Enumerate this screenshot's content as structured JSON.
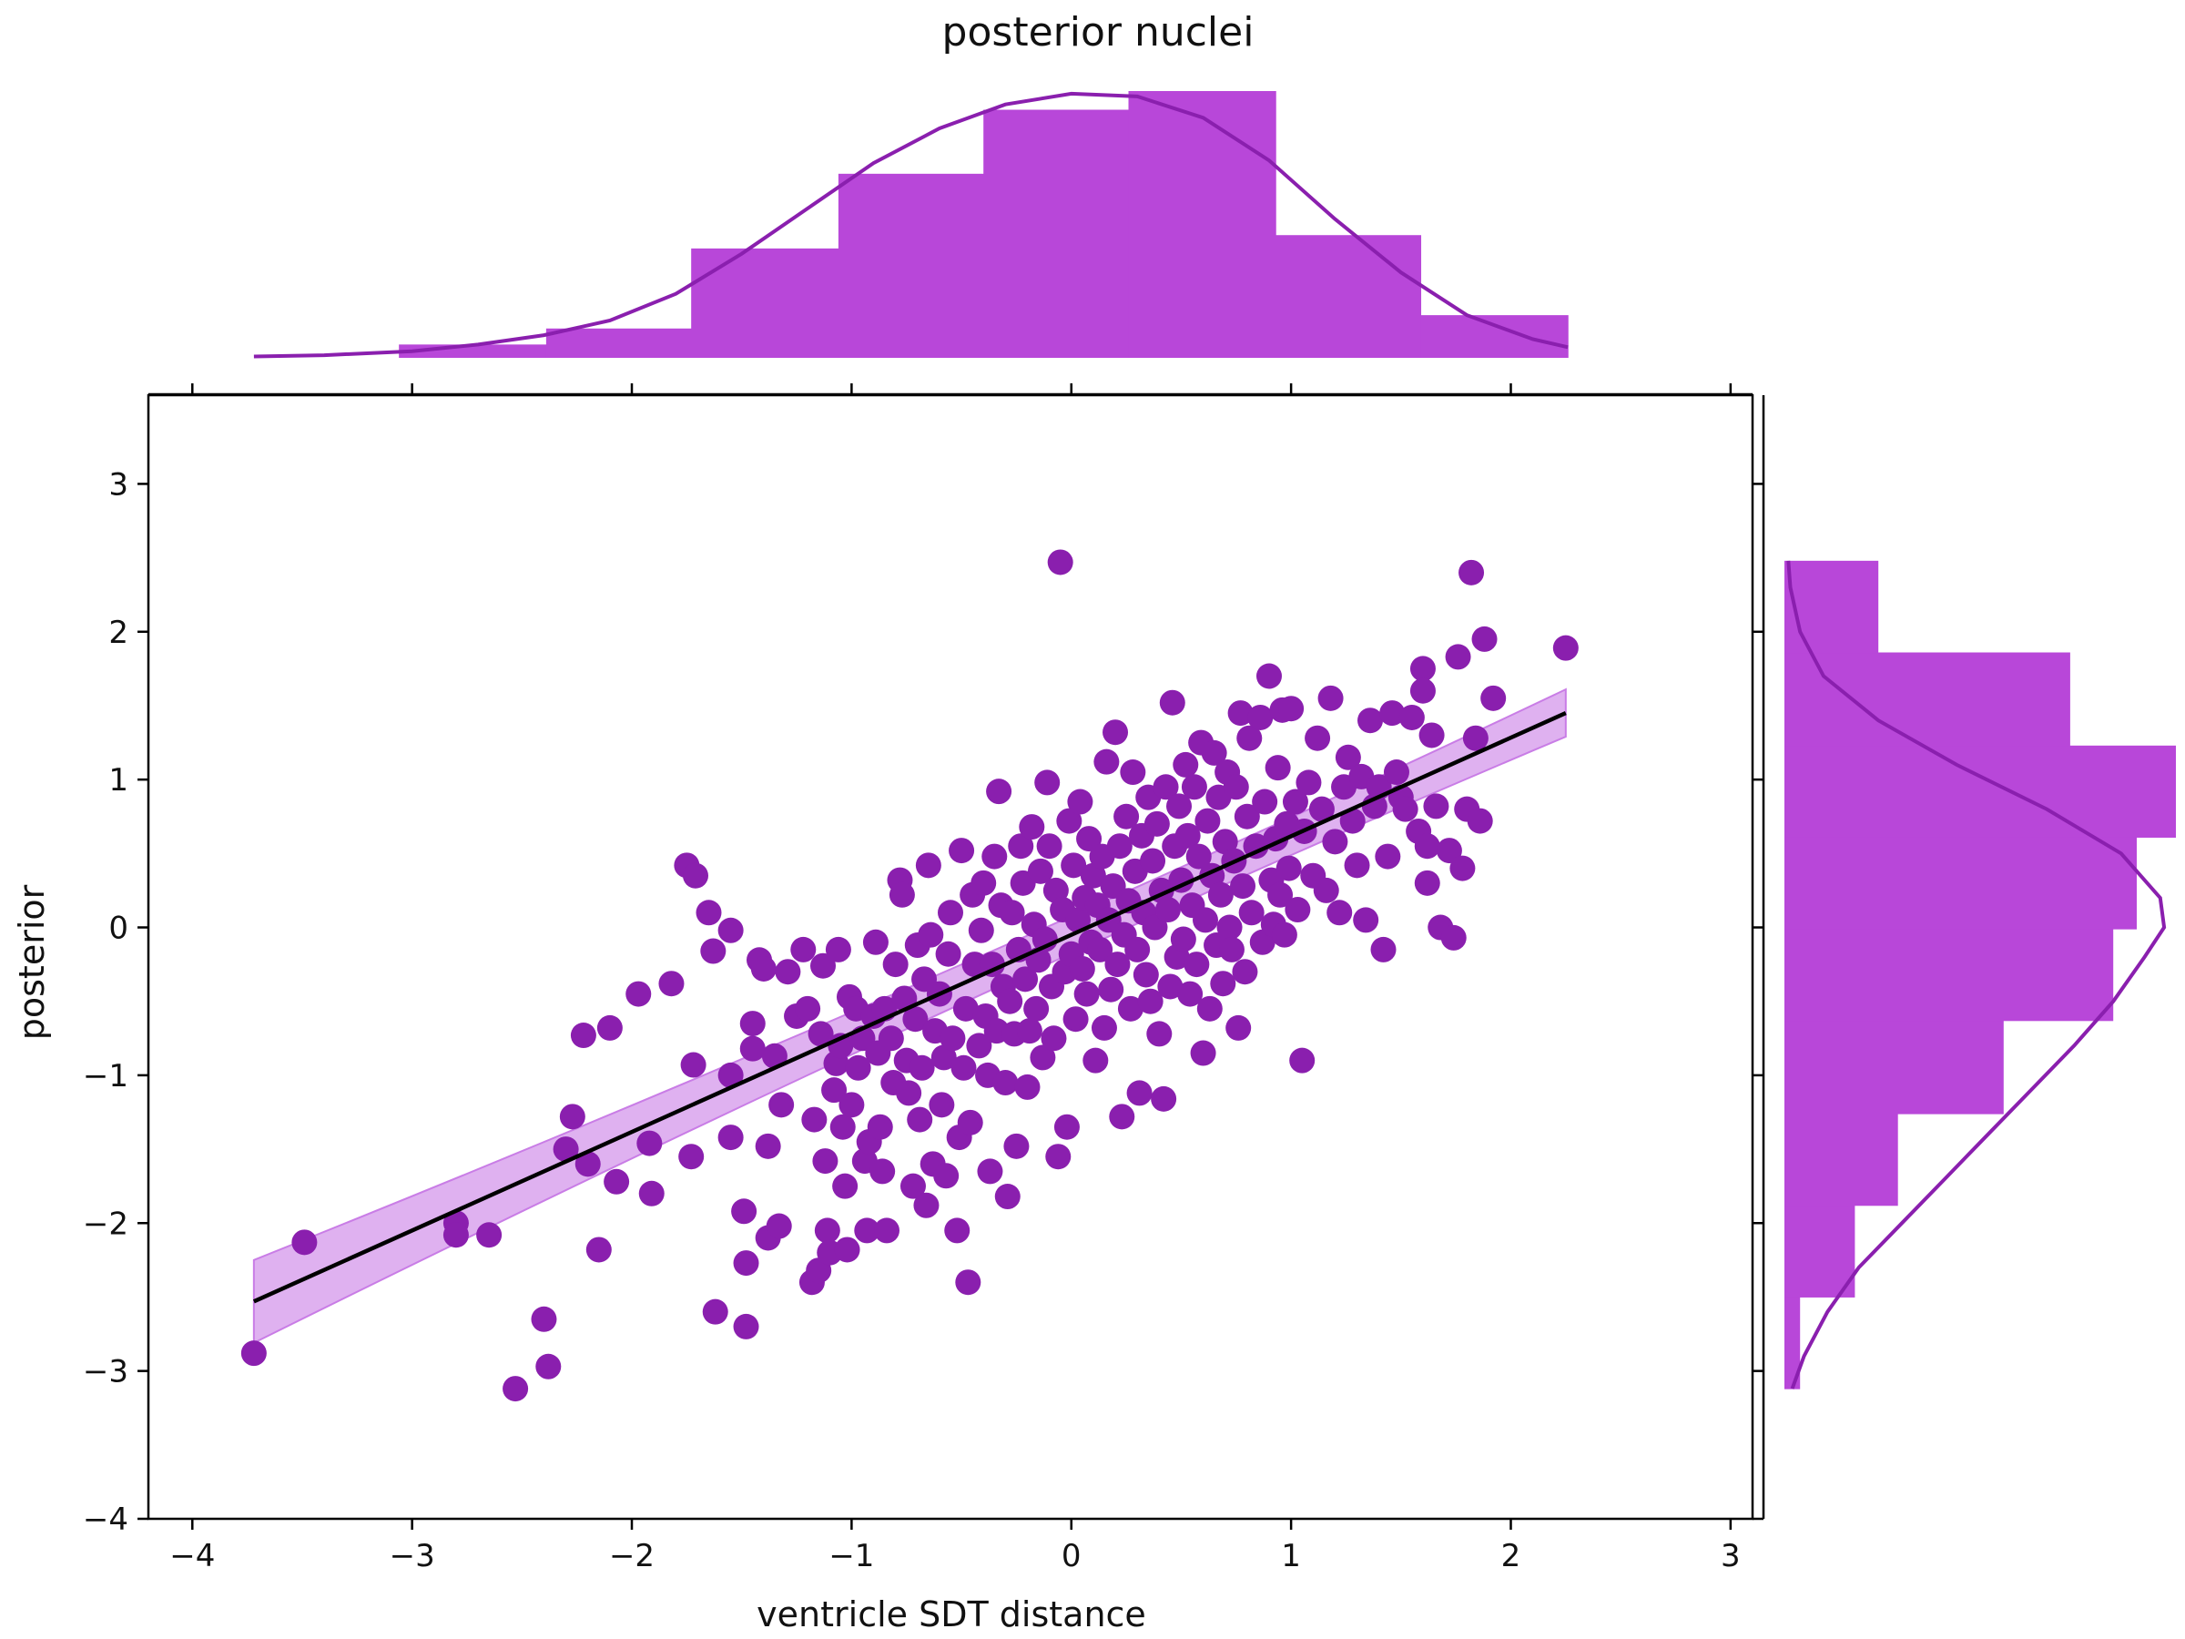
{
  "chart_data": {
    "type": "scatter",
    "title": "posterior nuclei",
    "xlabel": "ventricle SDT distance",
    "ylabel": "posterior",
    "xlim": [
      -4.2,
      3.1
    ],
    "ylim": [
      -4,
      3.6
    ],
    "xticks": [
      -4,
      -3,
      -2,
      -1,
      0,
      1,
      2,
      3
    ],
    "yticks": [
      -4,
      -3,
      -2,
      -1,
      0,
      1,
      2,
      3
    ],
    "grid": false,
    "colors": {
      "points": "#8a1fae",
      "hist": "#b847d9",
      "kde": "#8a1fae",
      "regression": "#000000",
      "ci_band": "#c97de6"
    },
    "regression": {
      "x": [
        -3.72,
        2.25
      ],
      "y": [
        -2.53,
        1.45
      ],
      "ci_low_y": [
        -2.81,
        1.29
      ],
      "ci_high_y": [
        -2.25,
        1.61
      ]
    },
    "points": [
      [
        -3.72,
        -2.88
      ],
      [
        -3.49,
        -2.13
      ],
      [
        -2.8,
        -2.0
      ],
      [
        -2.8,
        -2.08
      ],
      [
        -2.65,
        -2.08
      ],
      [
        -2.53,
        -3.12
      ],
      [
        -2.38,
        -2.97
      ],
      [
        -2.4,
        -2.65
      ],
      [
        -2.15,
        -2.18
      ],
      [
        -2.3,
        -1.5
      ],
      [
        -2.27,
        -1.28
      ],
      [
        -2.2,
        -1.6
      ],
      [
        -2.22,
        -0.73
      ],
      [
        -2.1,
        -0.68
      ],
      [
        -2.07,
        -1.72
      ],
      [
        -1.97,
        -0.45
      ],
      [
        -1.92,
        -1.46
      ],
      [
        -1.91,
        -1.8
      ],
      [
        -1.82,
        -0.38
      ],
      [
        -1.75,
        0.42
      ],
      [
        -1.71,
        0.35
      ],
      [
        -1.72,
        -0.93
      ],
      [
        -1.73,
        -1.55
      ],
      [
        -1.65,
        0.1
      ],
      [
        -1.63,
        -0.16
      ],
      [
        -1.62,
        -2.6
      ],
      [
        -1.55,
        -0.02
      ],
      [
        -1.55,
        -1.0
      ],
      [
        -1.55,
        -1.42
      ],
      [
        -1.49,
        -1.92
      ],
      [
        -1.48,
        -2.27
      ],
      [
        -1.48,
        -2.7
      ],
      [
        -1.45,
        -0.82
      ],
      [
        -1.45,
        -0.65
      ],
      [
        -1.42,
        -0.22
      ],
      [
        -1.4,
        -0.28
      ],
      [
        -1.38,
        -1.48
      ],
      [
        -1.38,
        -2.1
      ],
      [
        -1.35,
        -0.87
      ],
      [
        -1.33,
        -2.02
      ],
      [
        -1.32,
        -1.2
      ],
      [
        -1.29,
        -0.3
      ],
      [
        -1.25,
        -0.6
      ],
      [
        -1.22,
        -0.15
      ],
      [
        -1.2,
        -0.55
      ],
      [
        -1.18,
        -2.4
      ],
      [
        -1.17,
        -1.3
      ],
      [
        -1.15,
        -2.32
      ],
      [
        -1.14,
        -0.72
      ],
      [
        -1.13,
        -0.26
      ],
      [
        -1.12,
        -1.58
      ],
      [
        -1.11,
        -2.05
      ],
      [
        -1.1,
        -2.2
      ],
      [
        -1.08,
        -1.1
      ],
      [
        -1.07,
        -0.92
      ],
      [
        -1.06,
        -0.15
      ],
      [
        -1.05,
        -0.8
      ],
      [
        -1.04,
        -1.35
      ],
      [
        -1.03,
        -1.75
      ],
      [
        -1.02,
        -2.18
      ],
      [
        -1.01,
        -0.47
      ],
      [
        -1.0,
        -1.2
      ],
      [
        -0.98,
        -0.55
      ],
      [
        -0.97,
        -0.95
      ],
      [
        -0.95,
        -0.75
      ],
      [
        -0.94,
        -1.58
      ],
      [
        -0.93,
        -2.05
      ],
      [
        -0.92,
        -1.45
      ],
      [
        -0.9,
        -0.6
      ],
      [
        -0.89,
        -0.1
      ],
      [
        -0.88,
        -0.85
      ],
      [
        -0.87,
        -1.35
      ],
      [
        -0.86,
        -1.65
      ],
      [
        -0.85,
        -0.55
      ],
      [
        -0.84,
        -2.05
      ],
      [
        -0.82,
        -0.75
      ],
      [
        -0.81,
        -1.05
      ],
      [
        -0.8,
        -0.25
      ],
      [
        -0.78,
        0.32
      ],
      [
        -0.77,
        0.22
      ],
      [
        -0.76,
        -0.48
      ],
      [
        -0.75,
        -0.9
      ],
      [
        -0.74,
        -1.12
      ],
      [
        -0.72,
        -1.75
      ],
      [
        -0.71,
        -0.62
      ],
      [
        -0.7,
        -0.12
      ],
      [
        -0.69,
        -1.3
      ],
      [
        -0.68,
        -0.95
      ],
      [
        -0.67,
        -0.35
      ],
      [
        -0.66,
        -1.88
      ],
      [
        -0.65,
        0.42
      ],
      [
        -0.64,
        -0.05
      ],
      [
        -0.63,
        -1.6
      ],
      [
        -0.62,
        -0.7
      ],
      [
        -0.6,
        -0.45
      ],
      [
        -0.59,
        -1.2
      ],
      [
        -0.58,
        -0.88
      ],
      [
        -0.57,
        -1.68
      ],
      [
        -0.56,
        -0.18
      ],
      [
        -0.55,
        0.1
      ],
      [
        -0.54,
        -0.75
      ],
      [
        -0.52,
        -2.05
      ],
      [
        -0.51,
        -1.42
      ],
      [
        -0.5,
        0.52
      ],
      [
        -0.49,
        -0.95
      ],
      [
        -0.48,
        -0.55
      ],
      [
        -0.47,
        -2.4
      ],
      [
        -0.46,
        -1.32
      ],
      [
        -0.45,
        0.22
      ],
      [
        -0.44,
        -0.25
      ],
      [
        -0.42,
        -0.8
      ],
      [
        -0.41,
        -0.02
      ],
      [
        -0.4,
        0.3
      ],
      [
        -0.39,
        -0.6
      ],
      [
        -0.38,
        -1.0
      ],
      [
        -0.37,
        -1.65
      ],
      [
        -0.36,
        -0.25
      ],
      [
        -0.35,
        0.48
      ],
      [
        -0.34,
        -0.7
      ],
      [
        -0.33,
        0.92
      ],
      [
        -0.32,
        0.15
      ],
      [
        -0.31,
        -0.4
      ],
      [
        -0.3,
        -1.05
      ],
      [
        -0.29,
        -1.82
      ],
      [
        -0.28,
        -0.5
      ],
      [
        -0.27,
        0.1
      ],
      [
        -0.26,
        -0.72
      ],
      [
        -0.25,
        -1.48
      ],
      [
        -0.24,
        -0.15
      ],
      [
        -0.23,
        0.55
      ],
      [
        -0.22,
        0.3
      ],
      [
        -0.21,
        -0.35
      ],
      [
        -0.2,
        -1.08
      ],
      [
        -0.19,
        -0.7
      ],
      [
        -0.18,
        0.68
      ],
      [
        -0.17,
        0.02
      ],
      [
        -0.16,
        -0.55
      ],
      [
        -0.15,
        -0.22
      ],
      [
        -0.14,
        0.38
      ],
      [
        -0.13,
        -0.88
      ],
      [
        -0.12,
        -0.08
      ],
      [
        -0.11,
        0.98
      ],
      [
        -0.1,
        0.55
      ],
      [
        -0.09,
        -0.4
      ],
      [
        -0.08,
        -0.75
      ],
      [
        -0.07,
        0.25
      ],
      [
        -0.06,
        -1.55
      ],
      [
        -0.05,
        2.47
      ],
      [
        -0.04,
        0.12
      ],
      [
        -0.03,
        -0.3
      ],
      [
        -0.02,
        -1.35
      ],
      [
        -0.01,
        0.72
      ],
      [
        0.0,
        -0.18
      ],
      [
        0.01,
        0.42
      ],
      [
        0.02,
        -0.62
      ],
      [
        0.03,
        0.05
      ],
      [
        0.04,
        0.85
      ],
      [
        0.05,
        -0.28
      ],
      [
        0.06,
        0.2
      ],
      [
        0.07,
        -0.45
      ],
      [
        0.08,
        0.6
      ],
      [
        0.09,
        -0.1
      ],
      [
        0.1,
        0.35
      ],
      [
        0.11,
        -0.9
      ],
      [
        0.12,
        0.15
      ],
      [
        0.13,
        -0.15
      ],
      [
        0.14,
        0.48
      ],
      [
        0.15,
        -0.68
      ],
      [
        0.16,
        1.12
      ],
      [
        0.17,
        0.05
      ],
      [
        0.18,
        -0.42
      ],
      [
        0.19,
        0.28
      ],
      [
        0.2,
        1.32
      ],
      [
        0.21,
        -0.25
      ],
      [
        0.22,
        0.55
      ],
      [
        0.23,
        -1.28
      ],
      [
        0.24,
        -0.05
      ],
      [
        0.25,
        0.75
      ],
      [
        0.26,
        0.18
      ],
      [
        0.27,
        -0.55
      ],
      [
        0.28,
        1.05
      ],
      [
        0.29,
        0.38
      ],
      [
        0.3,
        -0.15
      ],
      [
        0.31,
        -1.12
      ],
      [
        0.32,
        0.62
      ],
      [
        0.33,
        0.1
      ],
      [
        0.34,
        -0.32
      ],
      [
        0.35,
        0.88
      ],
      [
        0.36,
        -0.5
      ],
      [
        0.37,
        0.45
      ],
      [
        0.38,
        0.0
      ],
      [
        0.39,
        0.7
      ],
      [
        0.4,
        -0.72
      ],
      [
        0.41,
        0.25
      ],
      [
        0.42,
        -1.16
      ],
      [
        0.43,
        0.95
      ],
      [
        0.44,
        0.12
      ],
      [
        0.45,
        -0.4
      ],
      [
        0.46,
        1.52
      ],
      [
        0.47,
        0.55
      ],
      [
        0.48,
        -0.2
      ],
      [
        0.49,
        0.82
      ],
      [
        0.5,
        0.32
      ],
      [
        0.51,
        -0.08
      ],
      [
        0.52,
        1.1
      ],
      [
        0.53,
        0.62
      ],
      [
        0.54,
        -0.45
      ],
      [
        0.55,
        0.15
      ],
      [
        0.56,
        0.95
      ],
      [
        0.57,
        -0.25
      ],
      [
        0.58,
        0.48
      ],
      [
        0.59,
        1.25
      ],
      [
        0.6,
        -0.85
      ],
      [
        0.61,
        0.05
      ],
      [
        0.62,
        0.72
      ],
      [
        0.63,
        -0.55
      ],
      [
        0.64,
        0.35
      ],
      [
        0.65,
        1.18
      ],
      [
        0.66,
        -0.12
      ],
      [
        0.67,
        0.88
      ],
      [
        0.68,
        0.22
      ],
      [
        0.69,
        -0.38
      ],
      [
        0.7,
        0.58
      ],
      [
        0.71,
        1.05
      ],
      [
        0.72,
        0.0
      ],
      [
        0.73,
        -0.15
      ],
      [
        0.74,
        0.45
      ],
      [
        0.75,
        0.95
      ],
      [
        0.76,
        -0.68
      ],
      [
        0.77,
        1.45
      ],
      [
        0.78,
        0.28
      ],
      [
        0.79,
        -0.3
      ],
      [
        0.8,
        0.75
      ],
      [
        0.81,
        1.28
      ],
      [
        0.82,
        0.1
      ],
      [
        0.84,
        0.55
      ],
      [
        0.86,
        1.42
      ],
      [
        0.87,
        -0.1
      ],
      [
        0.88,
        0.85
      ],
      [
        0.9,
        1.7
      ],
      [
        0.91,
        0.32
      ],
      [
        0.92,
        0.02
      ],
      [
        0.93,
        0.6
      ],
      [
        0.94,
        1.08
      ],
      [
        0.95,
        0.22
      ],
      [
        0.96,
        1.47
      ],
      [
        0.97,
        -0.05
      ],
      [
        0.98,
        0.7
      ],
      [
        0.99,
        0.4
      ],
      [
        1.0,
        1.48
      ],
      [
        1.02,
        0.85
      ],
      [
        1.03,
        0.12
      ],
      [
        1.05,
        -0.9
      ],
      [
        1.06,
        0.65
      ],
      [
        1.08,
        0.98
      ],
      [
        1.1,
        0.35
      ],
      [
        1.12,
        1.28
      ],
      [
        1.14,
        0.8
      ],
      [
        1.16,
        0.25
      ],
      [
        1.18,
        1.55
      ],
      [
        1.2,
        0.58
      ],
      [
        1.22,
        0.1
      ],
      [
        1.24,
        0.95
      ],
      [
        1.26,
        1.15
      ],
      [
        1.28,
        0.72
      ],
      [
        1.3,
        0.42
      ],
      [
        1.32,
        1.02
      ],
      [
        1.34,
        0.05
      ],
      [
        1.36,
        1.4
      ],
      [
        1.38,
        0.82
      ],
      [
        1.4,
        0.95
      ],
      [
        1.42,
        -0.15
      ],
      [
        1.44,
        0.48
      ],
      [
        1.46,
        1.45
      ],
      [
        1.48,
        1.05
      ],
      [
        1.5,
        0.88
      ],
      [
        1.52,
        0.8
      ],
      [
        1.55,
        1.42
      ],
      [
        1.58,
        0.65
      ],
      [
        1.6,
        1.75
      ],
      [
        1.6,
        1.6
      ],
      [
        1.62,
        0.55
      ],
      [
        1.62,
        0.3
      ],
      [
        1.64,
        1.3
      ],
      [
        1.66,
        0.82
      ],
      [
        1.68,
        0.0
      ],
      [
        1.72,
        0.52
      ],
      [
        1.74,
        -0.07
      ],
      [
        1.76,
        1.83
      ],
      [
        1.78,
        0.4
      ],
      [
        1.8,
        0.8
      ],
      [
        1.82,
        2.4
      ],
      [
        1.84,
        1.28
      ],
      [
        1.86,
        0.72
      ],
      [
        1.88,
        1.95
      ],
      [
        1.92,
        1.55
      ],
      [
        2.25,
        1.89
      ]
    ],
    "top_marginal": {
      "bin_edges": [
        -3.72,
        -3.06,
        -2.39,
        -1.73,
        -1.06,
        -0.4,
        0.26,
        0.93,
        1.59,
        2.26
      ],
      "counts": [
        0.0,
        0.05,
        0.11,
        0.41,
        0.69,
        0.93,
        1.0,
        0.46,
        0.16
      ],
      "kde_x": [
        -3.72,
        -3.4,
        -3.0,
        -2.7,
        -2.4,
        -2.1,
        -1.8,
        -1.5,
        -1.2,
        -0.9,
        -0.6,
        -0.3,
        0.0,
        0.3,
        0.6,
        0.9,
        1.2,
        1.5,
        1.8,
        2.1,
        2.26
      ],
      "kde_y": [
        0.005,
        0.01,
        0.025,
        0.05,
        0.085,
        0.14,
        0.24,
        0.39,
        0.56,
        0.73,
        0.86,
        0.95,
        0.99,
        0.98,
        0.9,
        0.74,
        0.52,
        0.32,
        0.16,
        0.07,
        0.04
      ]
    },
    "right_marginal": {
      "bin_edges": [
        -3.12,
        -2.5,
        -1.88,
        -1.26,
        -0.63,
        -0.01,
        0.61,
        1.23,
        1.86,
        2.48
      ],
      "counts": [
        0.04,
        0.18,
        0.29,
        0.56,
        0.84,
        0.9,
        1.0,
        0.73,
        0.24
      ],
      "kde_y": [
        -3.12,
        -2.9,
        -2.6,
        -2.3,
        -2.0,
        -1.7,
        -1.4,
        -1.1,
        -0.8,
        -0.5,
        -0.2,
        0.0,
        0.2,
        0.5,
        0.8,
        1.1,
        1.4,
        1.7,
        2.0,
        2.3,
        2.48
      ],
      "kde_x": [
        0.02,
        0.05,
        0.11,
        0.19,
        0.3,
        0.41,
        0.52,
        0.63,
        0.74,
        0.84,
        0.92,
        0.97,
        0.96,
        0.86,
        0.67,
        0.44,
        0.24,
        0.1,
        0.04,
        0.015,
        0.01
      ]
    }
  }
}
